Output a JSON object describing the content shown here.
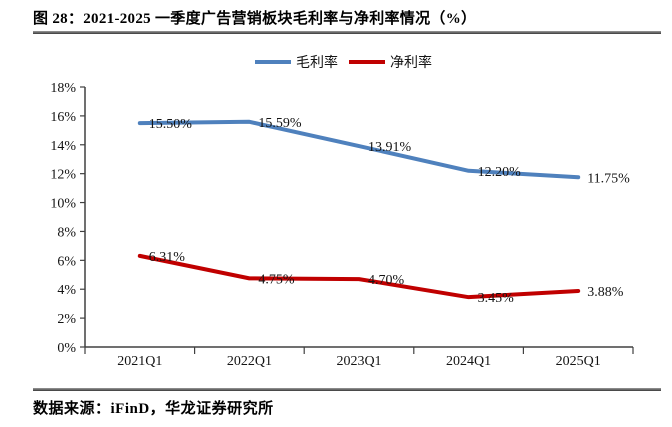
{
  "figure": {
    "title": "图 28：2021-2025 一季度广告营销板块毛利率与净利率情况（%）",
    "source": "数据来源：iFinD，华龙证券研究所"
  },
  "chart_data": {
    "type": "line",
    "title": "2021-2025 一季度广告营销板块毛利率与净利率情况（%）",
    "categories": [
      "2021Q1",
      "2022Q1",
      "2023Q1",
      "2024Q1",
      "2025Q1"
    ],
    "series": [
      {
        "name": "毛利率",
        "color": "#4F81BD",
        "values": [
          15.5,
          15.59,
          13.91,
          12.2,
          11.75
        ],
        "labels": [
          "15.50%",
          "15.59%",
          "13.91%",
          "12.20%",
          "11.75%"
        ]
      },
      {
        "name": "净利率",
        "color": "#C00000",
        "values": [
          6.31,
          4.75,
          4.7,
          3.45,
          3.88
        ],
        "labels": [
          "6.31%",
          "4.75%",
          "4.70%",
          "3.45%",
          "3.88%"
        ]
      }
    ],
    "y_axis": {
      "min": 0,
      "max": 18,
      "step": 2,
      "tick_labels": [
        "0%",
        "2%",
        "4%",
        "6%",
        "8%",
        "10%",
        "12%",
        "14%",
        "16%",
        "18%"
      ]
    },
    "x_axis": {
      "label": ""
    },
    "legend_position": "top-center",
    "grid": false,
    "axis_color": "#404040",
    "background": "#ffffff"
  }
}
